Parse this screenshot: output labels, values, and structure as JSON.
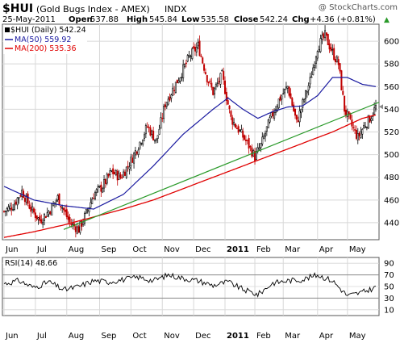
{
  "header": {
    "symbol": "$HUI",
    "name": "(Gold Bugs Index - AMEX)",
    "exchange": "INDX",
    "watermark": "@ StockCharts.com",
    "date": "25-May-2011",
    "open_label": "Open",
    "open": "537.88",
    "high_label": "High",
    "high": "545.84",
    "low_label": "Low",
    "low": "535.58",
    "close_label": "Close",
    "close": "542.24",
    "chg_label": "Chg",
    "chg": "+4.36 (+0.81%)",
    "chg_arrow": "▲"
  },
  "legend": {
    "price": "$HUI (Daily) 542.24",
    "ma50": "MA(50) 559.92",
    "ma200": "MA(200) 535.36",
    "rsi": "RSI(14) 48.66"
  },
  "colors": {
    "up_candle": "#000000",
    "down_candle": "#c00000",
    "ma50": "#1a1aa0",
    "ma200": "#e00000",
    "trendline": "#2a9a2a",
    "rsi_line": "#000000",
    "grid": "#d8d8d8"
  },
  "chart_data": [
    {
      "type": "line",
      "panel": "price",
      "x_tick_labels": [
        "Jun",
        "Jul",
        "Aug",
        "Sep",
        "Oct",
        "Nov",
        "Dec",
        "2011",
        "Feb",
        "Mar",
        "Apr",
        "May"
      ],
      "y_ticks": [
        440,
        460,
        480,
        500,
        520,
        540,
        560,
        580,
        600
      ],
      "ylim": [
        425,
        615
      ],
      "grid": true,
      "x_unit": "trading days since 2010-06-01",
      "close_series": {
        "x": [
          0,
          6,
          12,
          18,
          24,
          30,
          36,
          44,
          50,
          55,
          60,
          66,
          72,
          78,
          84,
          90,
          96,
          102,
          108,
          114,
          118,
          124,
          130,
          136,
          140,
          146,
          152,
          158,
          163,
          168,
          172,
          178,
          184,
          190,
          196,
          200,
          205,
          210,
          215,
          220,
          224,
          228,
          233,
          237,
          241,
          245,
          249
        ],
        "values": [
          450,
          455,
          468,
          452,
          442,
          450,
          462,
          440,
          434,
          448,
          465,
          472,
          485,
          480,
          492,
          508,
          525,
          512,
          545,
          560,
          570,
          586,
          596,
          568,
          555,
          570,
          532,
          520,
          510,
          498,
          508,
          530,
          548,
          560,
          528,
          545,
          565,
          595,
          605,
          590,
          580,
          540,
          525,
          515,
          525,
          532,
          542
        ]
      },
      "ma50": {
        "x": [
          0,
          20,
          40,
          60,
          80,
          100,
          120,
          140,
          150,
          160,
          170,
          180,
          190,
          200,
          210,
          220,
          230,
          240,
          249
        ],
        "values": [
          472,
          460,
          455,
          452,
          465,
          490,
          518,
          540,
          550,
          540,
          532,
          538,
          542,
          543,
          552,
          568,
          568,
          562,
          560
        ]
      },
      "ma200": {
        "x": [
          0,
          20,
          40,
          60,
          80,
          100,
          120,
          140,
          160,
          180,
          200,
          220,
          240,
          249
        ],
        "values": [
          427,
          432,
          438,
          445,
          452,
          460,
          470,
          480,
          490,
          500,
          510,
          520,
          532,
          535
        ]
      },
      "trendline": {
        "x": [
          40,
          249
        ],
        "values": [
          434,
          545
        ]
      },
      "last_close_marker": 542.24
    },
    {
      "type": "line",
      "panel": "rsi",
      "name": "RSI(14)",
      "y_ticks": [
        10,
        30,
        50,
        70,
        90
      ],
      "ylim": [
        0,
        100
      ],
      "reference_lines": [
        30,
        70
      ],
      "grid": true,
      "x_unit": "trading days since 2010-06-01",
      "x": [
        0,
        10,
        20,
        30,
        40,
        50,
        60,
        70,
        80,
        90,
        100,
        110,
        120,
        130,
        140,
        150,
        160,
        170,
        180,
        190,
        200,
        210,
        220,
        230,
        240,
        249
      ],
      "values": [
        55,
        60,
        48,
        58,
        44,
        50,
        60,
        58,
        62,
        66,
        60,
        70,
        64,
        60,
        52,
        58,
        45,
        36,
        56,
        60,
        62,
        70,
        60,
        34,
        40,
        48.66
      ]
    }
  ]
}
